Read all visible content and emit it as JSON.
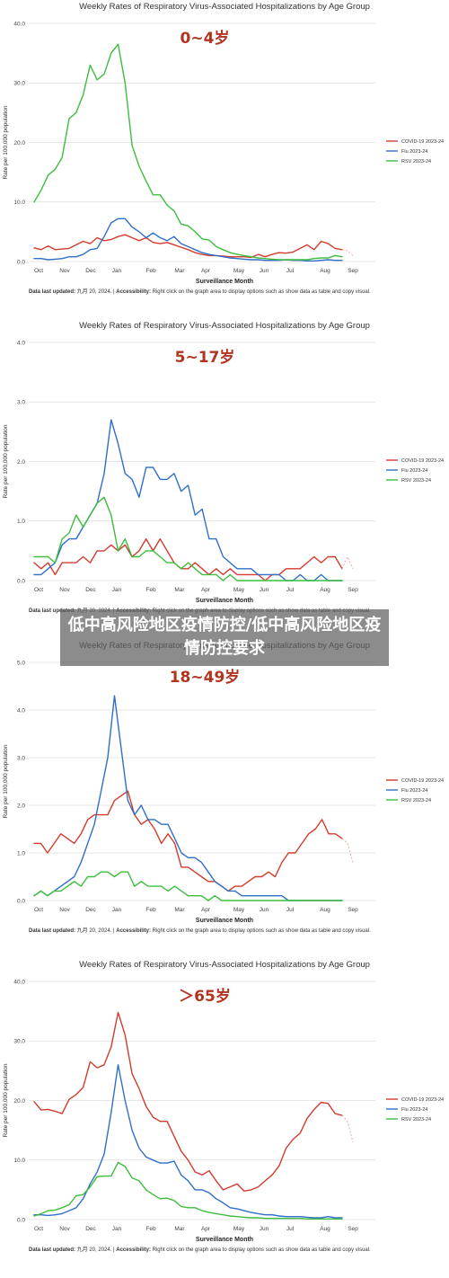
{
  "overlay_text": "低中高风险地区疫情防控/低中高风险地区疫情防控要求",
  "colors": {
    "covid": "#d23b2e",
    "flu": "#2f6fc8",
    "rsv": "#3dbd3d",
    "agelabel": "#b2341f"
  },
  "chart_data": [
    {
      "type": "line",
      "title": "Weekly Rates of Respiratory Virus-Associated Hospitalizations by Age Group",
      "age_label": "0~4岁",
      "ylabel": "Rate per 100,000 population",
      "xlabel": "Surveillance Month",
      "ylim": [
        0,
        40
      ],
      "yticks": [
        "0.0",
        "10.0",
        "20.0",
        "30.0",
        "40.0"
      ],
      "xticks": [
        "Oct",
        "Nov",
        "Dec",
        "Jan",
        "Feb",
        "Mar",
        "Apr",
        "May",
        "Jun",
        "Jul",
        "Aug",
        "Sep"
      ],
      "legend": [
        "COVID-19 2023-24",
        "Flu 2023-24",
        "RSV 2023-24"
      ],
      "footnote_bold": "Data last updated:",
      "footnote_date": " 九月 20, 2024. | ",
      "footnote_bold2": "Accessibility:",
      "footnote_rest": " Right click on the graph area to display options such as show data as table and copy visual.",
      "series": [
        {
          "name": "COVID-19 2023-24",
          "values": [
            2.3,
            2.0,
            2.6,
            2.0,
            2.1,
            2.2,
            2.8,
            3.4,
            3.0,
            4.0,
            3.5,
            3.7,
            4.2,
            4.5,
            4.0,
            3.5,
            4.0,
            3.2,
            3.0,
            3.2,
            2.8,
            2.4,
            2.0,
            1.5,
            1.2,
            1.0,
            1.0,
            0.9,
            0.8,
            0.8,
            0.8,
            0.7,
            1.2,
            0.8,
            1.2,
            1.5,
            1.4,
            1.6,
            2.2,
            2.8,
            2.0,
            3.4,
            3.0,
            2.2,
            2.0
          ],
          "dashed_tail": [
            1.8,
            1.0
          ]
        },
        {
          "name": "Flu 2023-24",
          "values": [
            0.5,
            0.5,
            0.3,
            0.4,
            0.5,
            0.8,
            0.8,
            1.2,
            2.0,
            2.2,
            4.2,
            6.5,
            7.2,
            7.2,
            5.8,
            5.0,
            4.0,
            4.8,
            4.0,
            3.5,
            4.2,
            3.0,
            2.5,
            2.0,
            1.5,
            1.2,
            1.0,
            0.8,
            0.6,
            0.5,
            0.4,
            0.3,
            0.3,
            0.2,
            0.2,
            0.2,
            0.3,
            0.2,
            0.2,
            0.1,
            0.1,
            0.2,
            0.3,
            0.2,
            0.2
          ],
          "dashed_tail": []
        },
        {
          "name": "RSV 2023-24",
          "values": [
            10.0,
            12.0,
            14.5,
            15.5,
            17.5,
            24.0,
            25.0,
            28.0,
            33.0,
            30.5,
            31.5,
            35.0,
            36.5,
            30.0,
            19.5,
            16.0,
            13.5,
            11.2,
            11.2,
            9.5,
            8.5,
            6.3,
            6.0,
            5.0,
            3.8,
            3.6,
            2.5,
            2.0,
            1.5,
            1.2,
            1.0,
            0.8,
            0.6,
            0.5,
            0.4,
            0.3,
            0.3,
            0.3,
            0.3,
            0.3,
            0.5,
            0.6,
            0.6,
            1.0,
            0.8
          ],
          "dashed_tail": []
        }
      ]
    },
    {
      "type": "line",
      "title": "Weekly Rates of Respiratory Virus-Associated Hospitalizations by Age Group",
      "age_label": "5~17岁",
      "ylabel": "Rate per 100,000 population",
      "xlabel": "Surveillance Month",
      "ylim": [
        0,
        4
      ],
      "yticks": [
        "0.0",
        "1.0",
        "2.0",
        "3.0",
        "4.0"
      ],
      "xticks": [
        "Oct",
        "Nov",
        "Dec",
        "Jan",
        "Feb",
        "Mar",
        "Apr",
        "May",
        "Jun",
        "Jul",
        "Aug",
        "Sep"
      ],
      "legend": [
        "COVID-19 2023-24",
        "Flu 2023-24",
        "RSV 2023-24"
      ],
      "footnote_bold": "Data last updated:",
      "footnote_date": " 九月 20, 2024. | ",
      "footnote_bold2": "Accessibility:",
      "footnote_rest": " Right click on the graph area to display options such as show data as table and copy visual.",
      "series": [
        {
          "name": "COVID-19 2023-24",
          "values": [
            0.3,
            0.2,
            0.3,
            0.1,
            0.3,
            0.3,
            0.3,
            0.4,
            0.3,
            0.5,
            0.5,
            0.6,
            0.5,
            0.6,
            0.4,
            0.5,
            0.7,
            0.5,
            0.7,
            0.5,
            0.3,
            0.2,
            0.2,
            0.3,
            0.2,
            0.1,
            0.2,
            0.1,
            0.2,
            0.1,
            0.1,
            0.1,
            0.1,
            0.0,
            0.1,
            0.1,
            0.2,
            0.2,
            0.2,
            0.3,
            0.4,
            0.3,
            0.4,
            0.4,
            0.2
          ],
          "dashed_tail": [
            0.4,
            0.2
          ]
        },
        {
          "name": "Flu 2023-24",
          "values": [
            0.1,
            0.1,
            0.2,
            0.3,
            0.6,
            0.7,
            0.7,
            0.9,
            1.1,
            1.3,
            1.8,
            2.7,
            2.3,
            1.8,
            1.7,
            1.4,
            1.9,
            1.9,
            1.7,
            1.7,
            1.8,
            1.5,
            1.6,
            1.1,
            1.2,
            0.7,
            0.7,
            0.4,
            0.3,
            0.2,
            0.2,
            0.2,
            0.1,
            0.1,
            0.1,
            0.1,
            0.0,
            0.0,
            0.1,
            0.0,
            0.0,
            0.1,
            0.0,
            0.0,
            0.0
          ],
          "dashed_tail": []
        },
        {
          "name": "RSV 2023-24",
          "values": [
            0.4,
            0.4,
            0.4,
            0.3,
            0.7,
            0.8,
            1.1,
            0.9,
            1.1,
            1.3,
            1.4,
            1.1,
            0.5,
            0.7,
            0.4,
            0.4,
            0.5,
            0.5,
            0.4,
            0.3,
            0.3,
            0.2,
            0.3,
            0.2,
            0.1,
            0.1,
            0.1,
            0.0,
            0.1,
            0.0,
            0.0,
            0.0,
            0.0,
            0.0,
            0.0,
            0.0,
            0.0,
            0.0,
            0.0,
            0.0,
            0.0,
            0.0,
            0.0,
            0.0,
            0.0
          ],
          "dashed_tail": []
        }
      ]
    },
    {
      "type": "line",
      "title": "Weekly Rates of Respiratory Virus-Associated Hospitalizations by Age Group",
      "age_label": "18~49岁",
      "ylabel": "Rate per 100,000 population",
      "xlabel": "Surveillance Month",
      "ylim": [
        0,
        5
      ],
      "yticks": [
        "0.0",
        "1.0",
        "2.0",
        "3.0",
        "4.0",
        "5.0"
      ],
      "xticks": [
        "Oct",
        "Nov",
        "Dec",
        "Jan",
        "Feb",
        "Mar",
        "Apr",
        "May",
        "Jun",
        "Jul",
        "Aug",
        "Sep"
      ],
      "legend": [
        "COVID-19 2023-24",
        "Flu 2023-24",
        "RSV 2023-24"
      ],
      "footnote_bold": "Data last updated:",
      "footnote_date": " 九月 20, 2024. | ",
      "footnote_bold2": "Accessibility:",
      "footnote_rest": " Right click on the graph area to display options such as show data as table and copy visual.",
      "series": [
        {
          "name": "COVID-19 2023-24",
          "values": [
            1.2,
            1.2,
            1.0,
            1.2,
            1.4,
            1.3,
            1.2,
            1.4,
            1.7,
            1.8,
            1.8,
            1.8,
            2.1,
            2.2,
            2.3,
            1.8,
            1.6,
            1.7,
            1.5,
            1.2,
            1.4,
            1.2,
            0.7,
            0.7,
            0.6,
            0.5,
            0.4,
            0.4,
            0.3,
            0.2,
            0.3,
            0.3,
            0.4,
            0.5,
            0.5,
            0.6,
            0.5,
            0.8,
            1.0,
            1.0,
            1.2,
            1.4,
            1.5,
            1.7,
            1.4,
            1.4,
            1.3
          ],
          "dashed_tail": [
            1.2,
            0.8
          ]
        },
        {
          "name": "Flu 2023-24",
          "values": [
            0.1,
            0.2,
            0.1,
            0.2,
            0.3,
            0.4,
            0.5,
            0.8,
            1.2,
            1.6,
            2.3,
            3.0,
            4.3,
            3.2,
            2.1,
            1.8,
            2.0,
            1.7,
            1.7,
            1.6,
            1.6,
            1.3,
            1.0,
            0.9,
            0.9,
            0.8,
            0.6,
            0.4,
            0.3,
            0.2,
            0.2,
            0.1,
            0.1,
            0.1,
            0.1,
            0.1,
            0.1,
            0.1,
            0.0,
            0.0,
            0.0,
            0.0,
            0.0,
            0.0,
            0.0,
            0.0,
            0.0
          ],
          "dashed_tail": []
        },
        {
          "name": "RSV 2023-24",
          "values": [
            0.1,
            0.2,
            0.1,
            0.2,
            0.2,
            0.3,
            0.4,
            0.3,
            0.5,
            0.5,
            0.6,
            0.6,
            0.5,
            0.6,
            0.6,
            0.3,
            0.4,
            0.3,
            0.3,
            0.3,
            0.2,
            0.3,
            0.2,
            0.1,
            0.1,
            0.1,
            0.0,
            0.1,
            0.0,
            0.0,
            0.0,
            0.0,
            0.0,
            0.0,
            0.0,
            0.0,
            0.0,
            0.0,
            0.0,
            0.0,
            0.0,
            0.0,
            0.0,
            0.0,
            0.0,
            0.0,
            0.0
          ],
          "dashed_tail": []
        }
      ]
    },
    {
      "type": "line",
      "title": "Weekly Rates of Respiratory Virus-Associated Hospitalizations by Age Group",
      "age_label": "＞65岁",
      "ylabel": "Rate per 100,000 population",
      "xlabel": "Surveillance Month",
      "ylim": [
        0,
        40
      ],
      "yticks": [
        "0.0",
        "10.0",
        "20.0",
        "30.0",
        "40.0"
      ],
      "xticks": [
        "Oct",
        "Nov",
        "Dec",
        "Jan",
        "Feb",
        "Mar",
        "Apr",
        "May",
        "Jun",
        "Jul",
        "Aug",
        "Sep"
      ],
      "legend": [
        "COVID-19 2023-24",
        "Flu 2023-24",
        "RSV 2023-24"
      ],
      "footnote_bold": "Data last updated:",
      "footnote_date": " 九月 20, 2024. | ",
      "footnote_bold2": "Accessibility:",
      "footnote_rest": " Right click on the graph area to display options such as show data as table and copy visual.",
      "series": [
        {
          "name": "COVID-19 2023-24",
          "values": [
            19.8,
            18.4,
            18.5,
            18.2,
            17.8,
            20.2,
            21.0,
            22.2,
            26.5,
            25.5,
            26.0,
            29.0,
            34.8,
            31.0,
            24.5,
            22.0,
            19.0,
            17.2,
            16.5,
            16.5,
            14.0,
            11.5,
            10.0,
            8.0,
            7.5,
            8.2,
            6.5,
            5.0,
            5.5,
            6.0,
            4.8,
            5.0,
            5.5,
            6.5,
            7.5,
            9.0,
            12.0,
            13.5,
            14.5,
            17.0,
            18.5,
            19.7,
            19.5,
            17.8,
            17.5
          ],
          "dashed_tail": [
            16.5,
            13.0
          ]
        },
        {
          "name": "Flu 2023-24",
          "values": [
            0.8,
            0.8,
            0.7,
            0.8,
            1.0,
            1.5,
            2.0,
            3.5,
            6.0,
            8.0,
            11.0,
            18.0,
            26.0,
            20.0,
            15.0,
            12.0,
            10.5,
            10.0,
            9.5,
            9.5,
            9.8,
            7.5,
            6.5,
            5.0,
            5.0,
            4.5,
            3.5,
            2.8,
            2.0,
            1.8,
            1.5,
            1.2,
            1.0,
            0.8,
            0.8,
            0.6,
            0.5,
            0.5,
            0.5,
            0.4,
            0.3,
            0.3,
            0.5,
            0.3,
            0.3
          ],
          "dashed_tail": []
        },
        {
          "name": "RSV 2023-24",
          "values": [
            0.6,
            1.0,
            1.5,
            1.6,
            2.0,
            2.5,
            4.0,
            4.2,
            5.5,
            7.2,
            7.3,
            7.3,
            9.6,
            8.9,
            7.0,
            6.5,
            5.0,
            4.2,
            3.5,
            3.6,
            3.2,
            2.2,
            2.0,
            2.0,
            1.5,
            1.2,
            1.0,
            0.8,
            0.6,
            0.5,
            0.4,
            0.3,
            0.3,
            0.2,
            0.2,
            0.2,
            0.2,
            0.2,
            0.2,
            0.1,
            0.1,
            0.1,
            0.1,
            0.1,
            0.1
          ],
          "dashed_tail": []
        }
      ]
    }
  ]
}
